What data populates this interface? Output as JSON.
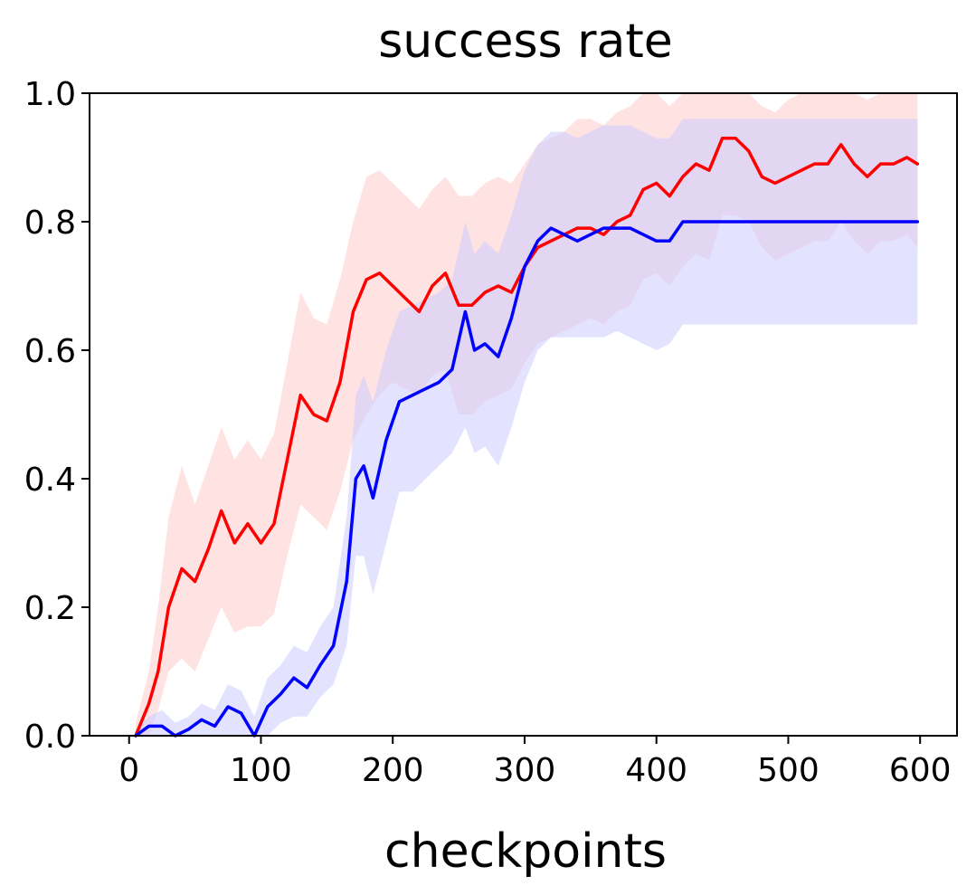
{
  "chart_data": {
    "type": "line",
    "title": "success rate",
    "xlabel": "checkpoints",
    "ylabel": "",
    "xlim": [
      -30,
      628
    ],
    "ylim": [
      0,
      1
    ],
    "xticks": [
      0,
      100,
      200,
      300,
      400,
      500,
      600
    ],
    "yticks": [
      0.0,
      0.2,
      0.4,
      0.6,
      0.8,
      1.0
    ],
    "xtick_labels": [
      "0",
      "100",
      "200",
      "300",
      "400",
      "500",
      "600"
    ],
    "ytick_labels": [
      "0.0",
      "0.2",
      "0.4",
      "0.6",
      "0.8",
      "1.0"
    ],
    "grid": false,
    "legend": false,
    "series": [
      {
        "color": "#ff0000",
        "band_color": "#ffcccc",
        "band_opacity": 0.55,
        "x": [
          5,
          15,
          22,
          30,
          40,
          50,
          60,
          70,
          80,
          90,
          100,
          110,
          120,
          130,
          140,
          150,
          160,
          170,
          180,
          190,
          200,
          210,
          220,
          230,
          240,
          250,
          260,
          270,
          280,
          290,
          300,
          310,
          320,
          330,
          340,
          350,
          360,
          370,
          380,
          390,
          400,
          410,
          420,
          430,
          440,
          450,
          460,
          470,
          480,
          490,
          500,
          510,
          520,
          530,
          540,
          550,
          560,
          570,
          580,
          590,
          598
        ],
        "y": [
          0.0,
          0.05,
          0.1,
          0.2,
          0.26,
          0.24,
          0.29,
          0.35,
          0.3,
          0.33,
          0.3,
          0.33,
          0.43,
          0.53,
          0.5,
          0.49,
          0.55,
          0.66,
          0.71,
          0.72,
          0.7,
          0.68,
          0.66,
          0.7,
          0.72,
          0.67,
          0.67,
          0.69,
          0.7,
          0.69,
          0.73,
          0.76,
          0.77,
          0.78,
          0.79,
          0.79,
          0.78,
          0.8,
          0.81,
          0.85,
          0.86,
          0.84,
          0.87,
          0.89,
          0.88,
          0.93,
          0.93,
          0.91,
          0.87,
          0.86,
          0.87,
          0.88,
          0.89,
          0.89,
          0.92,
          0.89,
          0.87,
          0.89,
          0.89,
          0.9,
          0.89
        ],
        "y_low": [
          0.0,
          0.0,
          0.04,
          0.1,
          0.12,
          0.1,
          0.15,
          0.2,
          0.16,
          0.17,
          0.17,
          0.19,
          0.28,
          0.36,
          0.34,
          0.32,
          0.38,
          0.46,
          0.5,
          0.53,
          0.55,
          0.54,
          0.53,
          0.56,
          0.57,
          0.5,
          0.5,
          0.52,
          0.53,
          0.54,
          0.58,
          0.61,
          0.62,
          0.63,
          0.64,
          0.65,
          0.64,
          0.66,
          0.67,
          0.71,
          0.72,
          0.7,
          0.73,
          0.75,
          0.74,
          0.81,
          0.81,
          0.8,
          0.76,
          0.74,
          0.75,
          0.76,
          0.77,
          0.77,
          0.8,
          0.77,
          0.75,
          0.77,
          0.77,
          0.78,
          0.76
        ],
        "y_high": [
          0.02,
          0.1,
          0.2,
          0.34,
          0.42,
          0.36,
          0.42,
          0.48,
          0.43,
          0.46,
          0.43,
          0.47,
          0.58,
          0.69,
          0.65,
          0.64,
          0.71,
          0.8,
          0.87,
          0.88,
          0.86,
          0.84,
          0.82,
          0.85,
          0.87,
          0.84,
          0.84,
          0.86,
          0.87,
          0.86,
          0.89,
          0.92,
          0.93,
          0.94,
          0.96,
          0.96,
          0.95,
          0.97,
          0.98,
          1.0,
          1.0,
          0.98,
          1.0,
          1.0,
          1.0,
          1.0,
          1.0,
          1.0,
          0.98,
          0.97,
          0.99,
          1.0,
          1.0,
          1.0,
          1.0,
          1.0,
          0.99,
          1.0,
          1.0,
          1.0,
          1.0
        ]
      },
      {
        "color": "#0000ff",
        "band_color": "#ccccff",
        "band_opacity": 0.55,
        "x": [
          5,
          15,
          25,
          35,
          45,
          55,
          65,
          75,
          85,
          95,
          105,
          115,
          125,
          135,
          145,
          155,
          165,
          172,
          178,
          185,
          195,
          205,
          215,
          225,
          235,
          245,
          255,
          262,
          270,
          280,
          290,
          300,
          310,
          320,
          330,
          340,
          350,
          360,
          370,
          380,
          390,
          400,
          410,
          420,
          440,
          460,
          480,
          500,
          520,
          540,
          560,
          580,
          598
        ],
        "y": [
          0.0,
          0.015,
          0.015,
          0.0,
          0.01,
          0.025,
          0.015,
          0.045,
          0.035,
          0.0,
          0.045,
          0.065,
          0.09,
          0.075,
          0.11,
          0.14,
          0.24,
          0.4,
          0.42,
          0.37,
          0.46,
          0.52,
          0.53,
          0.54,
          0.55,
          0.57,
          0.66,
          0.6,
          0.61,
          0.59,
          0.65,
          0.73,
          0.77,
          0.79,
          0.78,
          0.77,
          0.78,
          0.79,
          0.79,
          0.79,
          0.78,
          0.77,
          0.77,
          0.8,
          0.8,
          0.8,
          0.8,
          0.8,
          0.8,
          0.8,
          0.8,
          0.8,
          0.8
        ],
        "y_low": [
          0.0,
          0.0,
          0.0,
          0.0,
          0.0,
          0.0,
          0.0,
          0.0,
          0.0,
          0.0,
          0.0,
          0.02,
          0.03,
          0.03,
          0.06,
          0.08,
          0.14,
          0.28,
          0.28,
          0.22,
          0.3,
          0.38,
          0.38,
          0.4,
          0.42,
          0.44,
          0.48,
          0.44,
          0.45,
          0.42,
          0.48,
          0.55,
          0.6,
          0.62,
          0.62,
          0.62,
          0.62,
          0.62,
          0.63,
          0.62,
          0.61,
          0.6,
          0.61,
          0.64,
          0.64,
          0.64,
          0.64,
          0.64,
          0.64,
          0.64,
          0.64,
          0.64,
          0.64
        ],
        "y_high": [
          0.01,
          0.03,
          0.04,
          0.02,
          0.03,
          0.05,
          0.04,
          0.08,
          0.07,
          0.03,
          0.09,
          0.11,
          0.14,
          0.13,
          0.17,
          0.2,
          0.34,
          0.53,
          0.56,
          0.52,
          0.6,
          0.66,
          0.67,
          0.68,
          0.69,
          0.71,
          0.8,
          0.75,
          0.77,
          0.75,
          0.81,
          0.88,
          0.92,
          0.94,
          0.94,
          0.93,
          0.94,
          0.95,
          0.95,
          0.95,
          0.94,
          0.93,
          0.93,
          0.96,
          0.96,
          0.96,
          0.96,
          0.96,
          0.96,
          0.96,
          0.96,
          0.96,
          0.96
        ]
      }
    ]
  }
}
